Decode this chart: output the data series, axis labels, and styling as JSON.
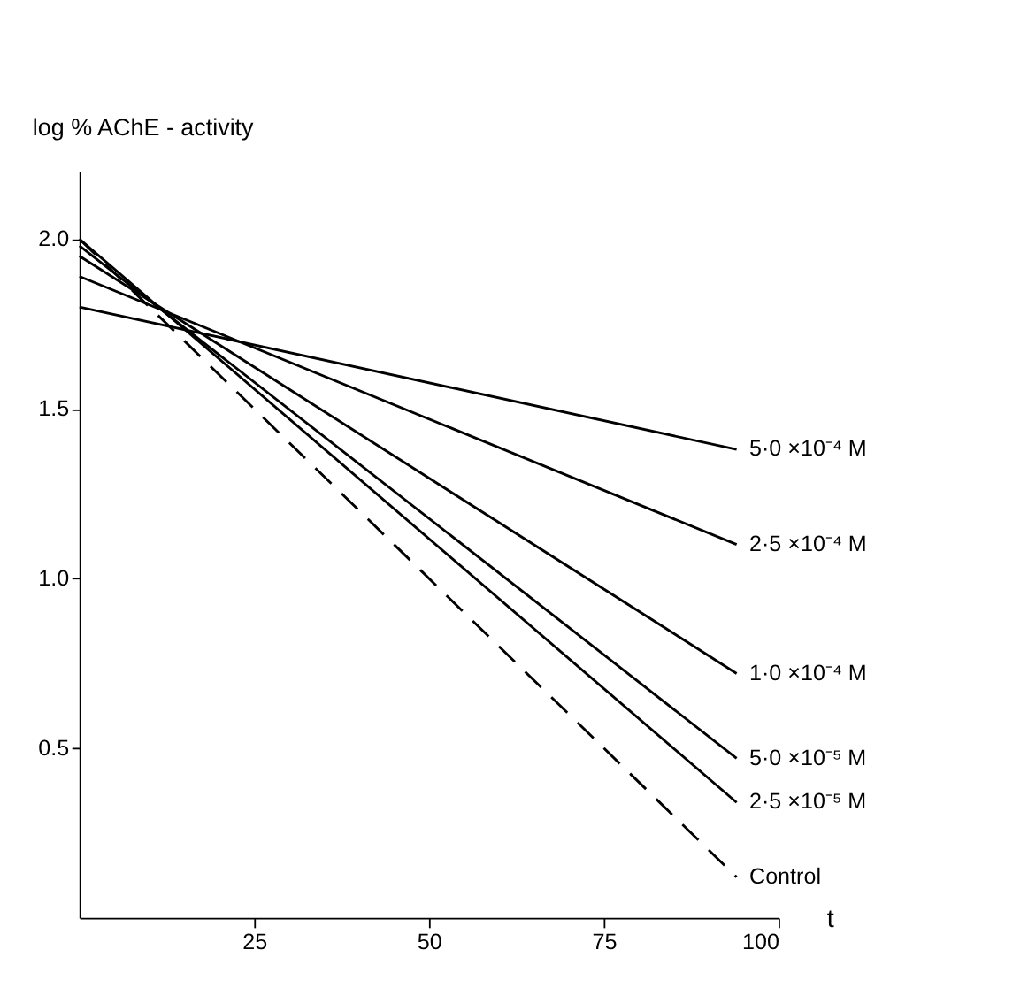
{
  "chart_data": {
    "type": "line",
    "xlabel": "t",
    "ylabel": "log % AChE - activity",
    "x": [
      0,
      94
    ],
    "xlim": [
      0,
      100
    ],
    "ylim": [
      0,
      2.2
    ],
    "xticks": [
      25,
      50,
      75,
      100
    ],
    "yticks": [
      {
        "value": 0.5,
        "label": "0.5"
      },
      {
        "value": 1.0,
        "label": "1.0"
      },
      {
        "value": 1.5,
        "label": "1.5"
      },
      {
        "value": 2.0,
        "label": "2.0"
      }
    ],
    "grid": false,
    "legend": false,
    "marker": "none",
    "series": [
      {
        "name": "5·0 ×10⁻⁴ M",
        "color": "#000000",
        "line_style": "solid",
        "values": [
          1.8,
          1.38
        ]
      },
      {
        "name": "2·5 ×10⁻⁴ M",
        "color": "#000000",
        "line_style": "solid",
        "values": [
          1.89,
          1.1
        ]
      },
      {
        "name": "1·0 ×10⁻⁴ M",
        "color": "#000000",
        "line_style": "solid",
        "values": [
          1.95,
          0.72
        ]
      },
      {
        "name": "5·0 ×10⁻⁵ M",
        "color": "#000000",
        "line_style": "solid",
        "values": [
          1.98,
          0.47
        ]
      },
      {
        "name": "2·5 ×10⁻⁵ M",
        "color": "#000000",
        "line_style": "solid",
        "values": [
          2.0,
          0.34
        ]
      },
      {
        "name": "Control",
        "color": "#000000",
        "line_style": "dashed",
        "values": [
          2.0,
          0.12
        ]
      }
    ]
  }
}
